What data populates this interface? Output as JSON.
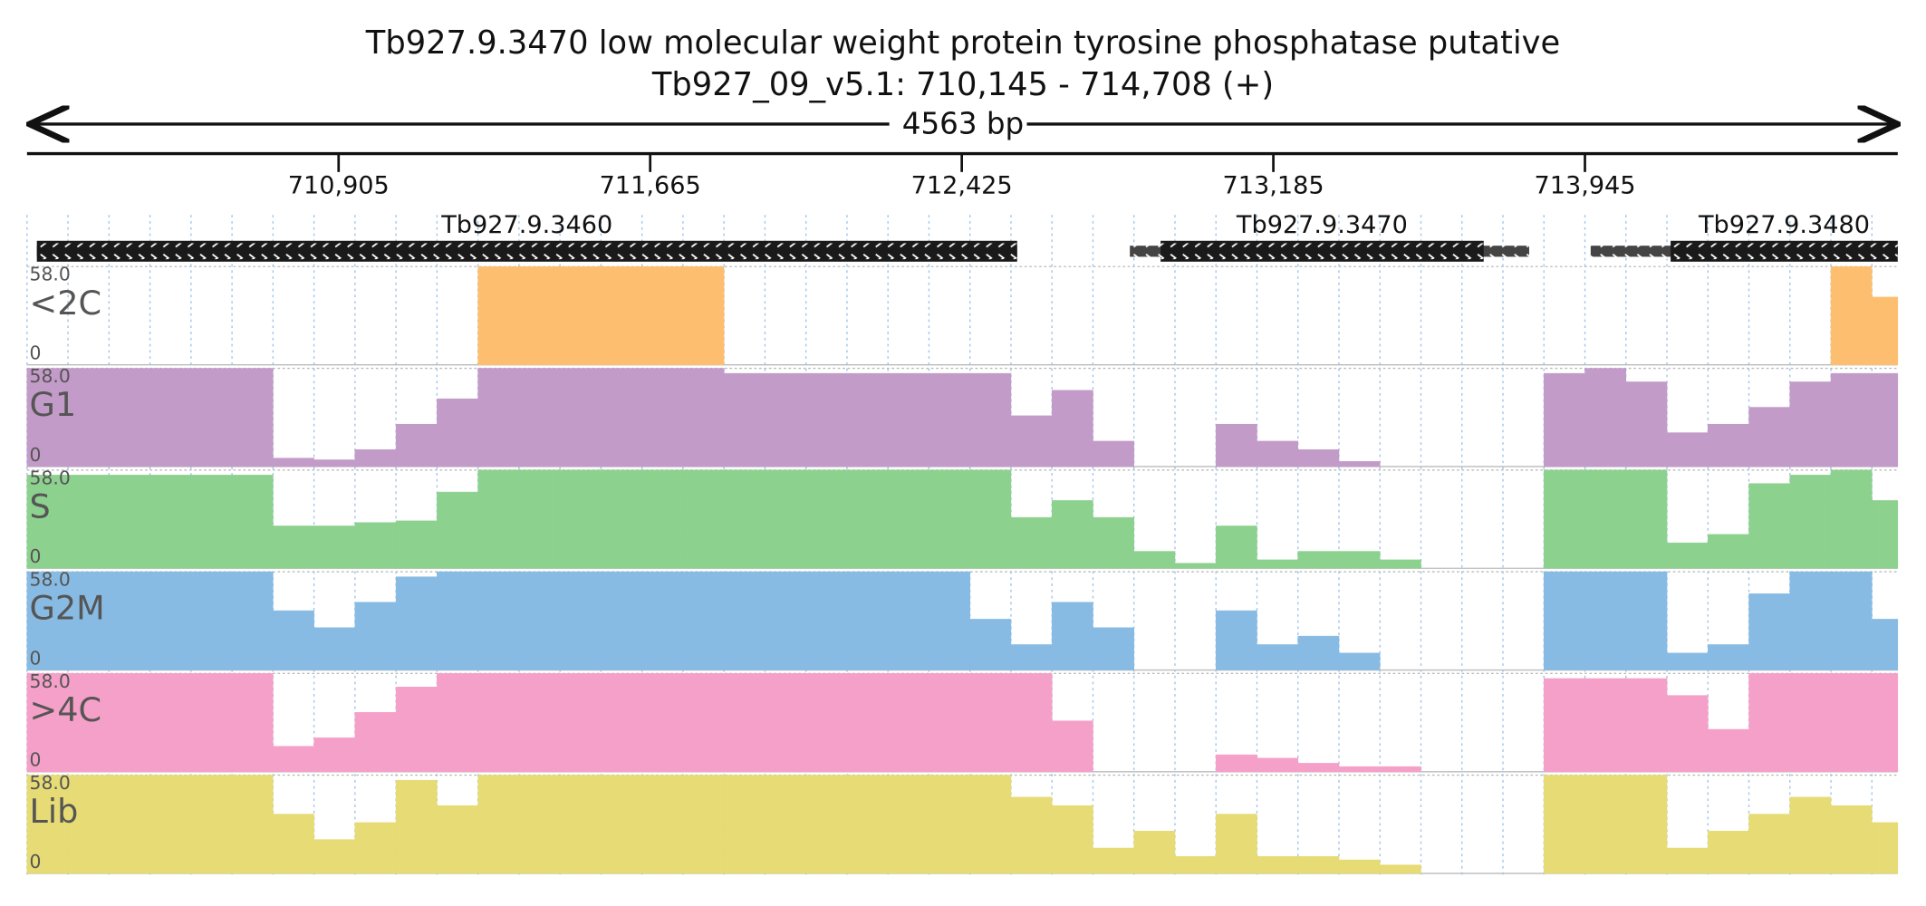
{
  "chart_data": {
    "type": "coverage",
    "title": "Tb927.9.3470  low molecular weight protein tyrosine phosphatase  putative",
    "subtitle": "Tb927_09_v5.1: 710,145 - 714,708 (+)",
    "span": "4563 bp",
    "xlim": [
      710145,
      714708
    ],
    "xticks": [
      {
        "value": 710905,
        "label": "710,905"
      },
      {
        "value": 711665,
        "label": "711,665"
      },
      {
        "value": 712425,
        "label": "712,425"
      },
      {
        "value": 713185,
        "label": "713,185"
      },
      {
        "value": 713945,
        "label": "713,945"
      }
    ],
    "genes": [
      {
        "name": "Tb927.9.3460",
        "start": 710169,
        "end": 712560,
        "thick_start": 710169,
        "thick_end": 712560
      },
      {
        "name": "Tb927.9.3470",
        "start": 712835,
        "end": 713809,
        "thick_start": 712910,
        "thick_end": 713698
      },
      {
        "name": "Tb927.9.3480",
        "start": 713959,
        "end": 714708,
        "thick_start": 714154,
        "thick_end": 714708
      }
    ],
    "ylim": [
      0,
      58
    ],
    "yticks": [
      {
        "value": 58,
        "label": "58.0"
      },
      0
    ],
    "x": [
      710145,
      710245,
      710345,
      710445,
      710545,
      710645,
      710745,
      710845,
      710945,
      711045,
      711145,
      711245,
      711345,
      711445,
      711545,
      711645,
      711745,
      711845,
      711945,
      712045,
      712145,
      712245,
      712345,
      712445,
      712545,
      712645,
      712745,
      712845,
      712945,
      713045,
      713145,
      713245,
      713345,
      713445,
      713545,
      713645,
      713745,
      713845,
      713945,
      714045,
      714145,
      714245,
      714345,
      714445,
      714545,
      714645
    ],
    "series": [
      {
        "name": "<2C",
        "color": "#fdbf6f",
        "values": [
          0,
          0,
          0,
          0,
          0,
          0,
          0,
          0,
          0,
          0,
          0,
          58,
          58,
          58,
          58,
          58,
          58,
          0,
          0,
          0,
          0,
          0,
          0,
          0,
          0,
          0,
          0,
          0,
          0,
          0,
          0,
          0,
          0,
          0,
          0,
          0,
          0,
          0,
          0,
          0,
          0,
          0,
          0,
          0,
          58,
          40
        ]
      },
      {
        "name": "G1",
        "color": "#c39bc8",
        "values": [
          58,
          58,
          58,
          58,
          58,
          58,
          5,
          4,
          10,
          25,
          40,
          58,
          58,
          58,
          58,
          58,
          58,
          55,
          55,
          55,
          55,
          55,
          55,
          55,
          30,
          45,
          15,
          0,
          0,
          25,
          15,
          10,
          3,
          0,
          0,
          0,
          0,
          55,
          58,
          50,
          20,
          25,
          35,
          50,
          55,
          55
        ]
      },
      {
        "name": "S",
        "color": "#8dd18f",
        "values": [
          55,
          55,
          55,
          55,
          55,
          55,
          25,
          25,
          27,
          28,
          45,
          58,
          58,
          58,
          58,
          58,
          58,
          58,
          58,
          58,
          58,
          58,
          58,
          58,
          30,
          40,
          30,
          10,
          3,
          25,
          5,
          10,
          10,
          5,
          0,
          0,
          0,
          58,
          58,
          58,
          15,
          20,
          50,
          55,
          58,
          40
        ]
      },
      {
        "name": "G2M",
        "color": "#88bbe3",
        "values": [
          58,
          58,
          58,
          58,
          58,
          58,
          35,
          25,
          40,
          55,
          58,
          58,
          58,
          58,
          58,
          58,
          58,
          58,
          58,
          58,
          58,
          58,
          58,
          30,
          15,
          40,
          25,
          0,
          0,
          35,
          15,
          20,
          10,
          0,
          0,
          0,
          0,
          58,
          58,
          58,
          10,
          15,
          45,
          58,
          58,
          30
        ]
      },
      {
        "name": ">4C",
        "color": "#f5a0c8",
        "values": [
          58,
          58,
          58,
          58,
          58,
          58,
          15,
          20,
          35,
          50,
          58,
          58,
          58,
          58,
          58,
          58,
          58,
          58,
          58,
          58,
          58,
          58,
          58,
          58,
          58,
          30,
          0,
          0,
          0,
          10,
          8,
          5,
          3,
          3,
          0,
          0,
          0,
          55,
          55,
          55,
          45,
          25,
          58,
          58,
          58,
          58
        ]
      },
      {
        "name": "Lib",
        "color": "#e6db74",
        "values": [
          58,
          58,
          58,
          58,
          58,
          58,
          35,
          20,
          30,
          55,
          40,
          58,
          58,
          58,
          58,
          58,
          58,
          58,
          58,
          58,
          58,
          58,
          58,
          58,
          45,
          40,
          15,
          25,
          10,
          35,
          10,
          10,
          8,
          5,
          0,
          0,
          0,
          58,
          58,
          58,
          15,
          25,
          35,
          45,
          40,
          30
        ]
      }
    ]
  }
}
